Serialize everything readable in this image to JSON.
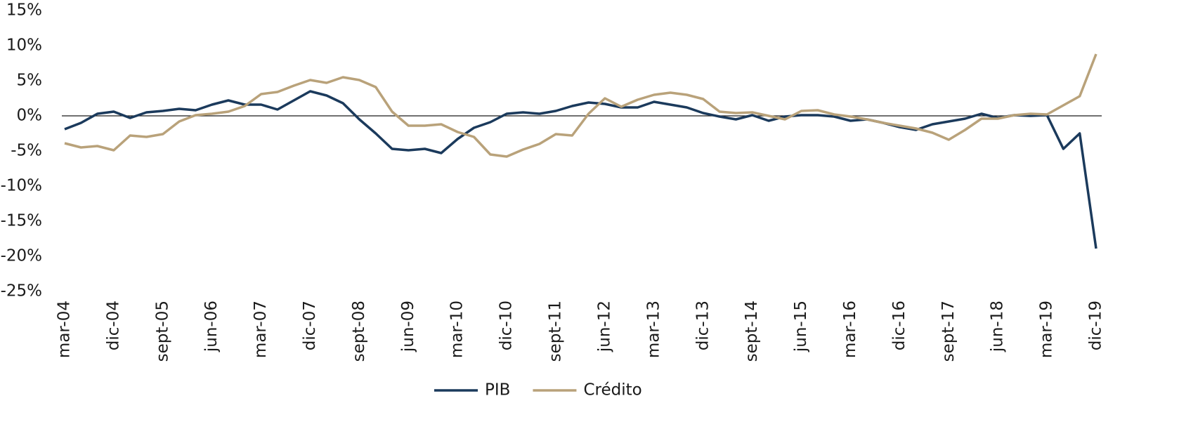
{
  "chart_data": {
    "type": "line",
    "categories": [
      "mar-04",
      null,
      null,
      "dic-04",
      null,
      null,
      "sept-05",
      null,
      null,
      "jun-06",
      null,
      null,
      "mar-07",
      null,
      null,
      "dic-07",
      null,
      null,
      "sept-08",
      null,
      null,
      "jun-09",
      null,
      null,
      "mar-10",
      null,
      null,
      "dic-10",
      null,
      null,
      "sept-11",
      null,
      null,
      "jun-12",
      null,
      null,
      "mar-13",
      null,
      null,
      "dic-13",
      null,
      null,
      "sept-14",
      null,
      null,
      "jun-15",
      null,
      null,
      "mar-16",
      null,
      null,
      "dic-16",
      null,
      null,
      "sept-17",
      null,
      null,
      "jun-18",
      null,
      null,
      "mar-19",
      null,
      null,
      "dic-19"
    ],
    "series": [
      {
        "name": "PIB",
        "color": "#1b3a5c",
        "values": [
          -1.9,
          -1.0,
          0.3,
          0.6,
          -0.3,
          0.5,
          0.7,
          1.0,
          0.8,
          1.6,
          2.2,
          1.6,
          1.6,
          0.9,
          2.2,
          3.5,
          2.9,
          1.8,
          -0.5,
          -2.5,
          -4.7,
          -4.9,
          -4.7,
          -5.3,
          -3.3,
          -1.7,
          -0.9,
          0.3,
          0.5,
          0.3,
          0.7,
          1.4,
          1.9,
          1.7,
          1.2,
          1.2,
          2.0,
          1.6,
          1.2,
          0.4,
          -0.1,
          -0.5,
          0.1,
          -0.7,
          -0.1,
          0.1,
          0.1,
          -0.1,
          -0.7,
          -0.5,
          -1.0,
          -1.6,
          -2.0,
          -1.2,
          -0.8,
          -0.4,
          0.3,
          -0.3,
          0.1,
          0.0,
          0.1,
          -4.7,
          -2.5,
          -18.9
        ]
      },
      {
        "name": "Crédito",
        "color": "#b9a27a",
        "values": [
          -3.9,
          -4.5,
          -4.3,
          -4.9,
          -2.8,
          -3.0,
          -2.6,
          -0.8,
          0.1,
          0.3,
          0.6,
          1.4,
          3.1,
          3.4,
          4.3,
          5.1,
          4.7,
          5.5,
          5.1,
          4.1,
          0.6,
          -1.4,
          -1.4,
          -1.2,
          -2.3,
          -3.0,
          -5.5,
          -5.8,
          -4.8,
          -4.0,
          -2.6,
          -2.8,
          0.3,
          2.5,
          1.3,
          2.3,
          3.0,
          3.3,
          3.0,
          2.4,
          0.6,
          0.4,
          0.5,
          0.0,
          -0.5,
          0.7,
          0.8,
          0.2,
          -0.1,
          -0.5,
          -1.0,
          -1.4,
          -1.8,
          -2.4,
          -3.4,
          -2.0,
          -0.4,
          -0.4,
          0.1,
          0.3,
          0.2,
          1.5,
          2.8,
          8.8
        ]
      }
    ],
    "ylim": [
      -25,
      15
    ],
    "yticks": [
      {
        "value": 15,
        "label": "15%"
      },
      {
        "value": 10,
        "label": "10%"
      },
      {
        "value": 5,
        "label": "5%"
      },
      {
        "value": 0,
        "label": "0%"
      },
      {
        "value": -5,
        "label": "-5%"
      },
      {
        "value": -10,
        "label": "-10%"
      },
      {
        "value": -15,
        "label": "-15%"
      },
      {
        "value": -20,
        "label": "-20%"
      },
      {
        "value": -25,
        "label": "-25%"
      }
    ],
    "grid": false,
    "legend": "bottom"
  }
}
